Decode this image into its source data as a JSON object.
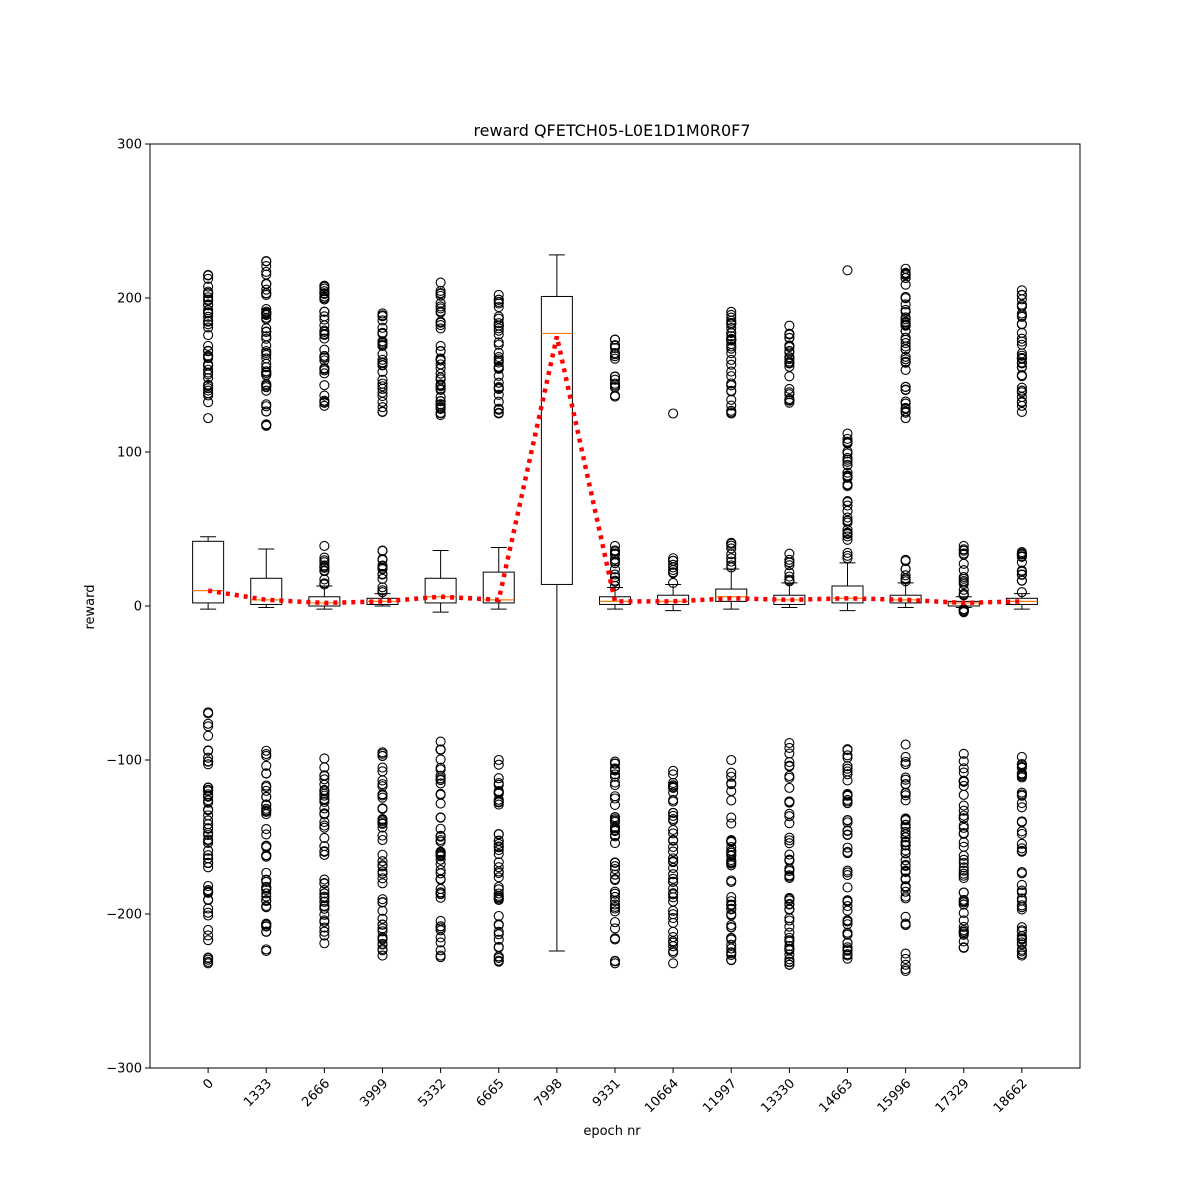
{
  "chart_data": {
    "type": "box",
    "title": "reward QFETCH05-L0E1D1M0R0F7",
    "xlabel": "epoch nr",
    "ylabel": "reward",
    "ylim": [
      -300,
      300
    ],
    "yticks": [
      -300,
      -200,
      -100,
      0,
      100,
      200,
      300
    ],
    "categories": [
      "0",
      "1333",
      "2666",
      "3999",
      "5332",
      "6665",
      "7998",
      "9331",
      "10664",
      "11997",
      "13330",
      "14663",
      "15996",
      "17329",
      "18662"
    ],
    "boxes": [
      {
        "q1": 2,
        "median": 10,
        "q3": 42,
        "whisker_low": -2,
        "whisker_high": 45,
        "outliers_upper": [
          122,
          215
        ],
        "outliers_lower": [
          -232,
          -69
        ]
      },
      {
        "q1": 1,
        "median": 4,
        "q3": 18,
        "whisker_low": -1,
        "whisker_high": 37,
        "outliers_upper": [
          117,
          224
        ],
        "outliers_lower": [
          -224,
          -94
        ]
      },
      {
        "q1": 0,
        "median": 2,
        "q3": 6,
        "whisker_low": -2,
        "whisker_high": 13,
        "outliers_upper": [
          14,
          39,
          130,
          208
        ],
        "outliers_lower": [
          -219,
          -99
        ]
      },
      {
        "q1": 1,
        "median": 3,
        "q3": 5,
        "whisker_low": 0,
        "whisker_high": 8,
        "outliers_upper": [
          9,
          36,
          126,
          190
        ],
        "outliers_lower": [
          -227,
          -95
        ]
      },
      {
        "q1": 2,
        "median": 6,
        "q3": 18,
        "whisker_low": -4,
        "whisker_high": 36,
        "outliers_upper": [
          124,
          210
        ],
        "outliers_lower": [
          -228,
          -88
        ]
      },
      {
        "q1": 2,
        "median": 4,
        "q3": 22,
        "whisker_low": -2,
        "whisker_high": 38,
        "outliers_upper": [
          125,
          202
        ],
        "outliers_lower": [
          -231,
          -100
        ]
      },
      {
        "q1": 14,
        "median": 177,
        "q3": 201,
        "whisker_low": -224,
        "whisker_high": 228,
        "outliers_upper": [],
        "outliers_lower": []
      },
      {
        "q1": 1,
        "median": 3,
        "q3": 6,
        "whisker_low": -2,
        "whisker_high": 12,
        "outliers_upper": [
          13,
          39,
          136,
          173
        ],
        "outliers_lower": [
          -232,
          -101
        ]
      },
      {
        "q1": 1,
        "median": 3,
        "q3": 7,
        "whisker_low": -3,
        "whisker_high": 14,
        "outliers_upper": [
          15,
          31,
          125
        ],
        "outliers_lower": [
          -232,
          -107
        ]
      },
      {
        "q1": 3,
        "median": 6,
        "q3": 11,
        "whisker_low": -2,
        "whisker_high": 24,
        "outliers_upper": [
          25,
          41,
          125,
          191
        ],
        "outliers_lower": [
          -230,
          -100
        ]
      },
      {
        "q1": 1,
        "median": 4,
        "q3": 7,
        "whisker_low": -1,
        "whisker_high": 15,
        "outliers_upper": [
          16,
          34,
          132,
          182
        ],
        "outliers_lower": [
          -233,
          -89
        ]
      },
      {
        "q1": 2,
        "median": 5,
        "q3": 13,
        "whisker_low": -3,
        "whisker_high": 28,
        "outliers_upper": [
          31,
          112,
          218
        ],
        "outliers_lower": [
          -229,
          -93
        ]
      },
      {
        "q1": 2,
        "median": 4,
        "q3": 7,
        "whisker_low": -1,
        "whisker_high": 15,
        "outliers_upper": [
          16,
          30,
          122,
          219
        ],
        "outliers_lower": [
          -237,
          -90
        ]
      },
      {
        "q1": 0,
        "median": 2,
        "q3": 3,
        "whisker_low": -1,
        "whisker_high": 6,
        "outliers_upper": [
          7,
          39
        ],
        "outliers_lower": [
          -4,
          -2,
          -222,
          -96
        ]
      },
      {
        "q1": 1,
        "median": 3,
        "q3": 5,
        "whisker_low": -2,
        "whisker_high": 8,
        "outliers_upper": [
          9,
          35,
          126,
          205
        ],
        "outliers_lower": [
          -227,
          -98
        ]
      }
    ],
    "mean_line": {
      "style": "dotted",
      "color": "#ff0000",
      "values": [
        10,
        4,
        2,
        3,
        6,
        4,
        175,
        3,
        3,
        5,
        4,
        5,
        4,
        2,
        3
      ]
    },
    "colors": {
      "box": "#000000",
      "median": "#ff7f0e",
      "mean": "#ff0000",
      "outlier": "#000000"
    },
    "grid": false
  }
}
